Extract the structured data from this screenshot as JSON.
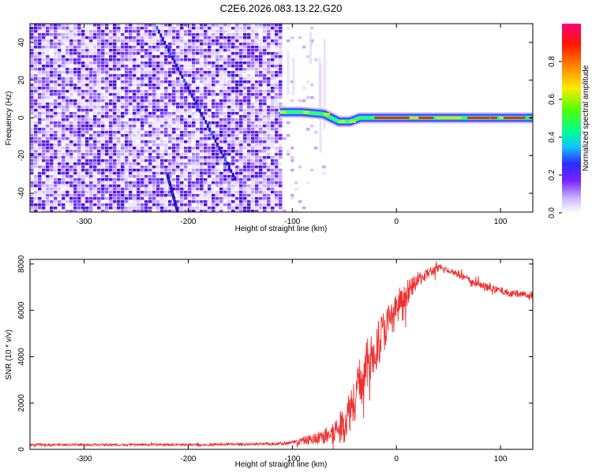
{
  "title": "C2E6.2026.083.13.22.G20",
  "chart_data": [
    {
      "type": "heatmap",
      "name": "spectrogram",
      "xlabel": "Height of straight line (km)",
      "ylabel": "Frequency (Hz)",
      "xlim": [
        -352,
        131
      ],
      "ylim": [
        -50,
        50
      ],
      "xticks": [
        -300,
        -200,
        -100,
        0,
        100
      ],
      "yticks": [
        -40,
        -20,
        0,
        20,
        40
      ],
      "xtick_labels": [
        "-300",
        "-200",
        "-100",
        "0",
        "100"
      ],
      "ytick_labels": [
        "-40",
        "-20",
        "0",
        "20",
        "40"
      ],
      "colorbar": {
        "label": "Normalized spectral amplitude",
        "range": [
          0,
          1
        ],
        "ticks": [
          0.0,
          0.2,
          0.4,
          0.6,
          0.8
        ],
        "tick_labels": [
          "0.0",
          "0.2",
          "0.4",
          "0.6",
          "0.8"
        ]
      },
      "noise_region_km": [
        -352,
        -110
      ],
      "sparse_noise_km": [
        -110,
        -70
      ],
      "carrier": {
        "start_km": -112,
        "freq_hz_points": [
          [
            -112,
            3
          ],
          [
            -90,
            3
          ],
          [
            -70,
            2
          ],
          [
            -55,
            -2
          ],
          [
            -45,
            -2
          ],
          [
            -35,
            0
          ],
          [
            131,
            0
          ]
        ]
      },
      "streaks": [
        {
          "x_km": [
            -230,
            -155
          ],
          "freq_hz": [
            48,
            -32
          ]
        },
        {
          "x_km": [
            -220,
            -210
          ],
          "freq_hz": [
            -30,
            -50
          ]
        }
      ]
    },
    {
      "type": "line",
      "name": "snr",
      "xlabel": "Height of straight line (km)",
      "ylabel": "SNR (10 * v/v)",
      "xlim": [
        -352,
        131
      ],
      "ylim": [
        0,
        8200
      ],
      "xticks": [
        -300,
        -200,
        -100,
        0,
        100
      ],
      "yticks": [
        0,
        2000,
        4000,
        6000,
        8000
      ],
      "xtick_labels": [
        "-300",
        "-200",
        "-100",
        "0",
        "100"
      ],
      "ytick_labels": [
        "0",
        "2000",
        "4000",
        "6000",
        "8000"
      ],
      "series": [
        {
          "name": "SNR",
          "color": "#ee3030",
          "x": [
            -352,
            -200,
            -120,
            -100,
            -80,
            -65,
            -50,
            -40,
            -30,
            -20,
            -10,
            0,
            10,
            20,
            30,
            40,
            50,
            60,
            70,
            80,
            90,
            100,
            110,
            120,
            131
          ],
          "y": [
            200,
            200,
            230,
            280,
            450,
            600,
            1100,
            2300,
            3400,
            4400,
            5300,
            6000,
            6700,
            7300,
            7600,
            7800,
            7750,
            7550,
            7300,
            7100,
            6950,
            6850,
            6750,
            6700,
            6650
          ],
          "noise_amplitude": [
            50,
            50,
            60,
            90,
            250,
            400,
            800,
            1100,
            1200,
            1100,
            900,
            700,
            500,
            350,
            250,
            200,
            180,
            170,
            160,
            160,
            160,
            160,
            160,
            160,
            160
          ]
        }
      ]
    }
  ]
}
